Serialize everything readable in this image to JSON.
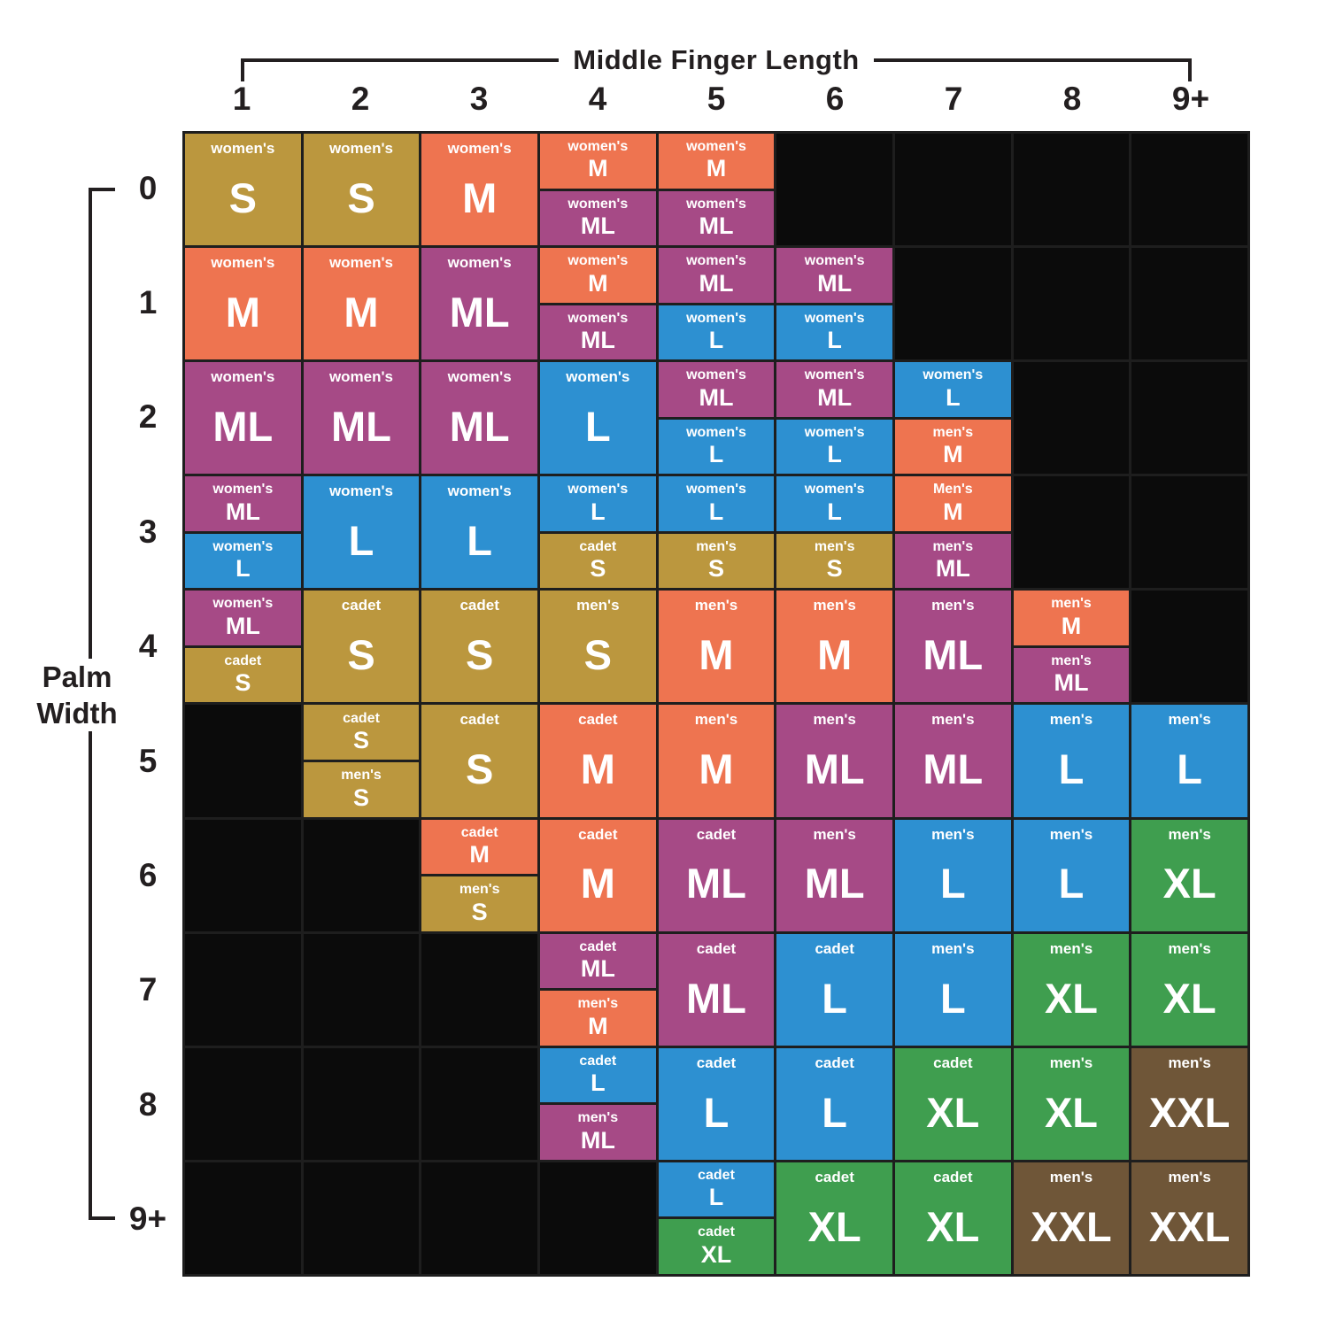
{
  "chart_data": {
    "type": "heatmap",
    "x_axis_title": "Middle Finger Length",
    "y_axis_title": "Palm Width",
    "y_axis_title_lines": [
      "Palm",
      "Width"
    ],
    "x_categories": [
      "1",
      "2",
      "3",
      "4",
      "5",
      "6",
      "7",
      "8",
      "9+"
    ],
    "y_categories": [
      "0",
      "1",
      "2",
      "3",
      "4",
      "5",
      "6",
      "7",
      "8",
      "9+"
    ],
    "legend_sizes": [
      "S",
      "M",
      "ML",
      "L",
      "XL",
      "XXL"
    ],
    "size_colors": {
      "S": "#bb973e",
      "M": "#ee7450",
      "ML": "#a64a86",
      "L": "#2d90d1",
      "XL": "#3f9e4f",
      "XXL": "#6f5638"
    },
    "empty_cell_color": "#0b0b0b",
    "grid_line_color": "#1e1e1e",
    "axis_color": "#231f20",
    "cells": [
      [
        [
          {
            "group": "women's",
            "size": "S"
          }
        ],
        [
          {
            "group": "women's",
            "size": "S"
          }
        ],
        [
          {
            "group": "women's",
            "size": "M"
          }
        ],
        [
          {
            "group": "women's",
            "size": "M"
          },
          {
            "group": "women's",
            "size": "ML"
          }
        ],
        [
          {
            "group": "women's",
            "size": "M"
          },
          {
            "group": "women's",
            "size": "ML"
          }
        ],
        null,
        null,
        null,
        null
      ],
      [
        [
          {
            "group": "women's",
            "size": "M"
          }
        ],
        [
          {
            "group": "women's",
            "size": "M"
          }
        ],
        [
          {
            "group": "women's",
            "size": "ML"
          }
        ],
        [
          {
            "group": "women's",
            "size": "M"
          },
          {
            "group": "women's",
            "size": "ML"
          }
        ],
        [
          {
            "group": "women's",
            "size": "ML"
          },
          {
            "group": "women's",
            "size": "L"
          }
        ],
        [
          {
            "group": "women's",
            "size": "ML"
          },
          {
            "group": "women's",
            "size": "L"
          }
        ],
        null,
        null,
        null
      ],
      [
        [
          {
            "group": "women's",
            "size": "ML"
          }
        ],
        [
          {
            "group": "women's",
            "size": "ML"
          }
        ],
        [
          {
            "group": "women's",
            "size": "ML"
          }
        ],
        [
          {
            "group": "women's",
            "size": "L"
          }
        ],
        [
          {
            "group": "women's",
            "size": "ML"
          },
          {
            "group": "women's",
            "size": "L"
          }
        ],
        [
          {
            "group": "women's",
            "size": "ML"
          },
          {
            "group": "women's",
            "size": "L"
          }
        ],
        [
          {
            "group": "women's",
            "size": "L"
          },
          {
            "group": "men's",
            "size": "M"
          }
        ],
        null,
        null
      ],
      [
        [
          {
            "group": "women's",
            "size": "ML"
          },
          {
            "group": "women's",
            "size": "L"
          }
        ],
        [
          {
            "group": "women's",
            "size": "L"
          }
        ],
        [
          {
            "group": "women's",
            "size": "L"
          }
        ],
        [
          {
            "group": "women's",
            "size": "L"
          },
          {
            "group": "cadet",
            "size": "S"
          }
        ],
        [
          {
            "group": "women's",
            "size": "L"
          },
          {
            "group": "men's",
            "size": "S"
          }
        ],
        [
          {
            "group": "women's",
            "size": "L"
          },
          {
            "group": "men's",
            "size": "S"
          }
        ],
        [
          {
            "group": "Men's",
            "size": "M"
          },
          {
            "group": "men's",
            "size": "ML"
          }
        ],
        null,
        null
      ],
      [
        [
          {
            "group": "women's",
            "size": "ML"
          },
          {
            "group": "cadet",
            "size": "S"
          }
        ],
        [
          {
            "group": "cadet",
            "size": "S"
          }
        ],
        [
          {
            "group": "cadet",
            "size": "S"
          }
        ],
        [
          {
            "group": "men's",
            "size": "S"
          }
        ],
        [
          {
            "group": "men's",
            "size": "M"
          }
        ],
        [
          {
            "group": "men's",
            "size": "M"
          }
        ],
        [
          {
            "group": "men's",
            "size": "ML"
          }
        ],
        [
          {
            "group": "men's",
            "size": "M"
          },
          {
            "group": "men's",
            "size": "ML"
          }
        ],
        null
      ],
      [
        null,
        [
          {
            "group": "cadet",
            "size": "S"
          },
          {
            "group": "men's",
            "size": "S"
          }
        ],
        [
          {
            "group": "cadet",
            "size": "S"
          }
        ],
        [
          {
            "group": "cadet",
            "size": "M"
          }
        ],
        [
          {
            "group": "men's",
            "size": "M"
          }
        ],
        [
          {
            "group": "men's",
            "size": "ML"
          }
        ],
        [
          {
            "group": "men's",
            "size": "ML"
          }
        ],
        [
          {
            "group": "men's",
            "size": "L"
          }
        ],
        [
          {
            "group": "men's",
            "size": "L"
          }
        ]
      ],
      [
        null,
        null,
        [
          {
            "group": "cadet",
            "size": "M"
          },
          {
            "group": "men's",
            "size": "S"
          }
        ],
        [
          {
            "group": "cadet",
            "size": "M"
          }
        ],
        [
          {
            "group": "cadet",
            "size": "ML"
          }
        ],
        [
          {
            "group": "men's",
            "size": "ML"
          }
        ],
        [
          {
            "group": "men's",
            "size": "L"
          }
        ],
        [
          {
            "group": "men's",
            "size": "L"
          }
        ],
        [
          {
            "group": "men's",
            "size": "XL"
          }
        ]
      ],
      [
        null,
        null,
        null,
        [
          {
            "group": "cadet",
            "size": "ML"
          },
          {
            "group": "men's",
            "size": "M"
          }
        ],
        [
          {
            "group": "cadet",
            "size": "ML"
          }
        ],
        [
          {
            "group": "cadet",
            "size": "L"
          }
        ],
        [
          {
            "group": "men's",
            "size": "L"
          }
        ],
        [
          {
            "group": "men's",
            "size": "XL"
          }
        ],
        [
          {
            "group": "men's",
            "size": "XL"
          }
        ]
      ],
      [
        null,
        null,
        null,
        [
          {
            "group": "cadet",
            "size": "L"
          },
          {
            "group": "men's",
            "size": "ML"
          }
        ],
        [
          {
            "group": "cadet",
            "size": "L"
          }
        ],
        [
          {
            "group": "cadet",
            "size": "L"
          }
        ],
        [
          {
            "group": "cadet",
            "size": "XL"
          }
        ],
        [
          {
            "group": "men's",
            "size": "XL"
          }
        ],
        [
          {
            "group": "men's",
            "size": "XXL"
          }
        ]
      ],
      [
        null,
        null,
        null,
        null,
        [
          {
            "group": "cadet",
            "size": "L"
          },
          {
            "group": "cadet",
            "size": "XL"
          }
        ],
        [
          {
            "group": "cadet",
            "size": "XL"
          }
        ],
        [
          {
            "group": "cadet",
            "size": "XL"
          }
        ],
        [
          {
            "group": "men's",
            "size": "XXL"
          }
        ],
        [
          {
            "group": "men's",
            "size": "XXL"
          }
        ]
      ]
    ]
  }
}
